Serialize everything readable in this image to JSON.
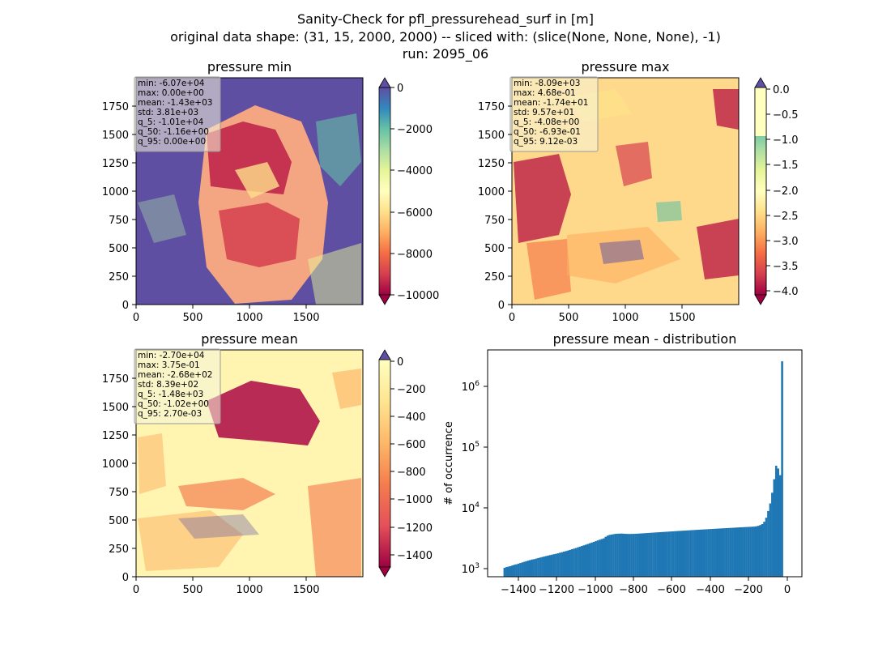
{
  "figure": {
    "suptitle_lines": [
      "Sanity-Check for pfl_pressurehead_surf in [m]",
      "original data shape: (31, 15, 2000, 2000) -- sliced with: (slice(None, None, None), -1)",
      "run: 2095_06"
    ]
  },
  "colors": {
    "spectral": [
      "#9e0142",
      "#d53e4f",
      "#f46d43",
      "#fdae61",
      "#fee08b",
      "#ffffbf",
      "#e6f598",
      "#abdda4",
      "#66c2a5",
      "#3288bd",
      "#5e4fa2"
    ],
    "hist_bar": "#1f77b4",
    "stats_box_bg": "#f5f5dc"
  },
  "chart_data": [
    {
      "type": "heatmap",
      "title": "pressure min",
      "xlabel": "",
      "ylabel": "",
      "xticks": [
        "0",
        "500",
        "1000",
        "1500"
      ],
      "yticks": [
        "0",
        "250",
        "500",
        "750",
        "1000",
        "1250",
        "1500",
        "1750"
      ],
      "xlim": [
        0,
        2000
      ],
      "ylim": [
        0,
        2000
      ],
      "colormap": "Spectral",
      "colorbar": {
        "min": -10000,
        "max": 0,
        "extend": "both",
        "ticks": [
          "0",
          "−2000",
          "−4000",
          "−6000",
          "−8000",
          "−10000"
        ]
      },
      "stats": [
        "min: -6.07e+04",
        "max: 0.00e+00",
        "mean: -1.43e+03",
        "std: 3.81e+03",
        "q_5: -1.01e+04",
        "q_50: -1.16e+00",
        "q_95: 0.00e+00"
      ]
    },
    {
      "type": "heatmap",
      "title": "pressure max",
      "xlabel": "",
      "ylabel": "",
      "xticks": [
        "0",
        "500",
        "1000",
        "1500"
      ],
      "yticks": [
        "0",
        "250",
        "500",
        "750",
        "1000",
        "1250",
        "1500",
        "1750"
      ],
      "xlim": [
        0,
        2000
      ],
      "ylim": [
        0,
        2000
      ],
      "colormap": "Spectral",
      "colorbar": {
        "min": -4.0,
        "max": 0.0,
        "extend": "both",
        "ticks": [
          "0.0",
          "−0.5",
          "−1.0",
          "−1.5",
          "−2.0",
          "−2.5",
          "−3.0",
          "−3.5",
          "−4.0"
        ]
      },
      "stats": [
        "min: -8.09e+03",
        "max: 4.68e-01",
        "mean: -1.74e+01",
        "std: 9.57e+01",
        "q_5: -4.08e+00",
        "q_50: -6.93e-01",
        "q_95: 9.12e-03"
      ]
    },
    {
      "type": "heatmap",
      "title": "pressure mean",
      "xlabel": "",
      "ylabel": "",
      "xticks": [
        "0",
        "500",
        "1000",
        "1500"
      ],
      "yticks": [
        "0",
        "250",
        "500",
        "750",
        "1000",
        "1250",
        "1500",
        "1750"
      ],
      "xlim": [
        0,
        2000
      ],
      "ylim": [
        0,
        2000
      ],
      "colormap": "Spectral",
      "colorbar": {
        "min": -1500,
        "max": 0,
        "extend": "both",
        "ticks": [
          "0",
          "−200",
          "−400",
          "−600",
          "−800",
          "−1000",
          "−1200",
          "−1400"
        ]
      },
      "stats": [
        "min: -2.70e+04",
        "max: 3.75e-01",
        "mean: -2.68e+02",
        "std: 8.39e+02",
        "q_5: -1.48e+03",
        "q_50: -1.02e+00",
        "q_95: 2.70e-03"
      ]
    },
    {
      "type": "bar",
      "title": "pressure mean - distribution",
      "xlabel": "",
      "ylabel": "# of occurrence",
      "xticks": [
        "−1400",
        "−1200",
        "−1000",
        "−800",
        "−600",
        "−400",
        "−200",
        "0"
      ],
      "yticks": [
        "10^3",
        "10^4",
        "10^5",
        "10^6"
      ],
      "xlim": [
        -1560,
        25
      ],
      "ylim": [
        750,
        4000000
      ],
      "yscale": "log",
      "bin_start": -1480,
      "bin_width": 10,
      "values": [
        1050,
        1080,
        1100,
        1120,
        1150,
        1180,
        1200,
        1230,
        1260,
        1290,
        1320,
        1350,
        1380,
        1410,
        1440,
        1460,
        1490,
        1520,
        1550,
        1580,
        1610,
        1640,
        1670,
        1700,
        1730,
        1760,
        1790,
        1820,
        1860,
        1900,
        1940,
        1980,
        2020,
        2070,
        2120,
        2170,
        2220,
        2280,
        2340,
        2400,
        2460,
        2520,
        2590,
        2660,
        2730,
        2800,
        2880,
        2960,
        3040,
        3120,
        3200,
        3400,
        3550,
        3650,
        3700,
        3750,
        3800,
        3820,
        3830,
        3840,
        3820,
        3800,
        3790,
        3780,
        3790,
        3800,
        3810,
        3820,
        3840,
        3860,
        3880,
        3900,
        3920,
        3940,
        3960,
        3980,
        4000,
        4020,
        4040,
        4060,
        4080,
        4100,
        4120,
        4140,
        4160,
        4180,
        4200,
        4220,
        4240,
        4260,
        4280,
        4300,
        4320,
        4340,
        4360,
        4380,
        4400,
        4420,
        4440,
        4460,
        4480,
        4500,
        4520,
        4540,
        4560,
        4580,
        4600,
        4620,
        4640,
        4660,
        4680,
        4700,
        4720,
        4740,
        4760,
        4780,
        4800,
        4820,
        4840,
        4860,
        4880,
        4900,
        4920,
        4940,
        4960,
        4980,
        5000,
        5050,
        5150,
        5300,
        5500,
        6000,
        7000,
        9000,
        12000,
        18000,
        30000,
        50000,
        45000,
        35000,
        2600000
      ]
    }
  ]
}
